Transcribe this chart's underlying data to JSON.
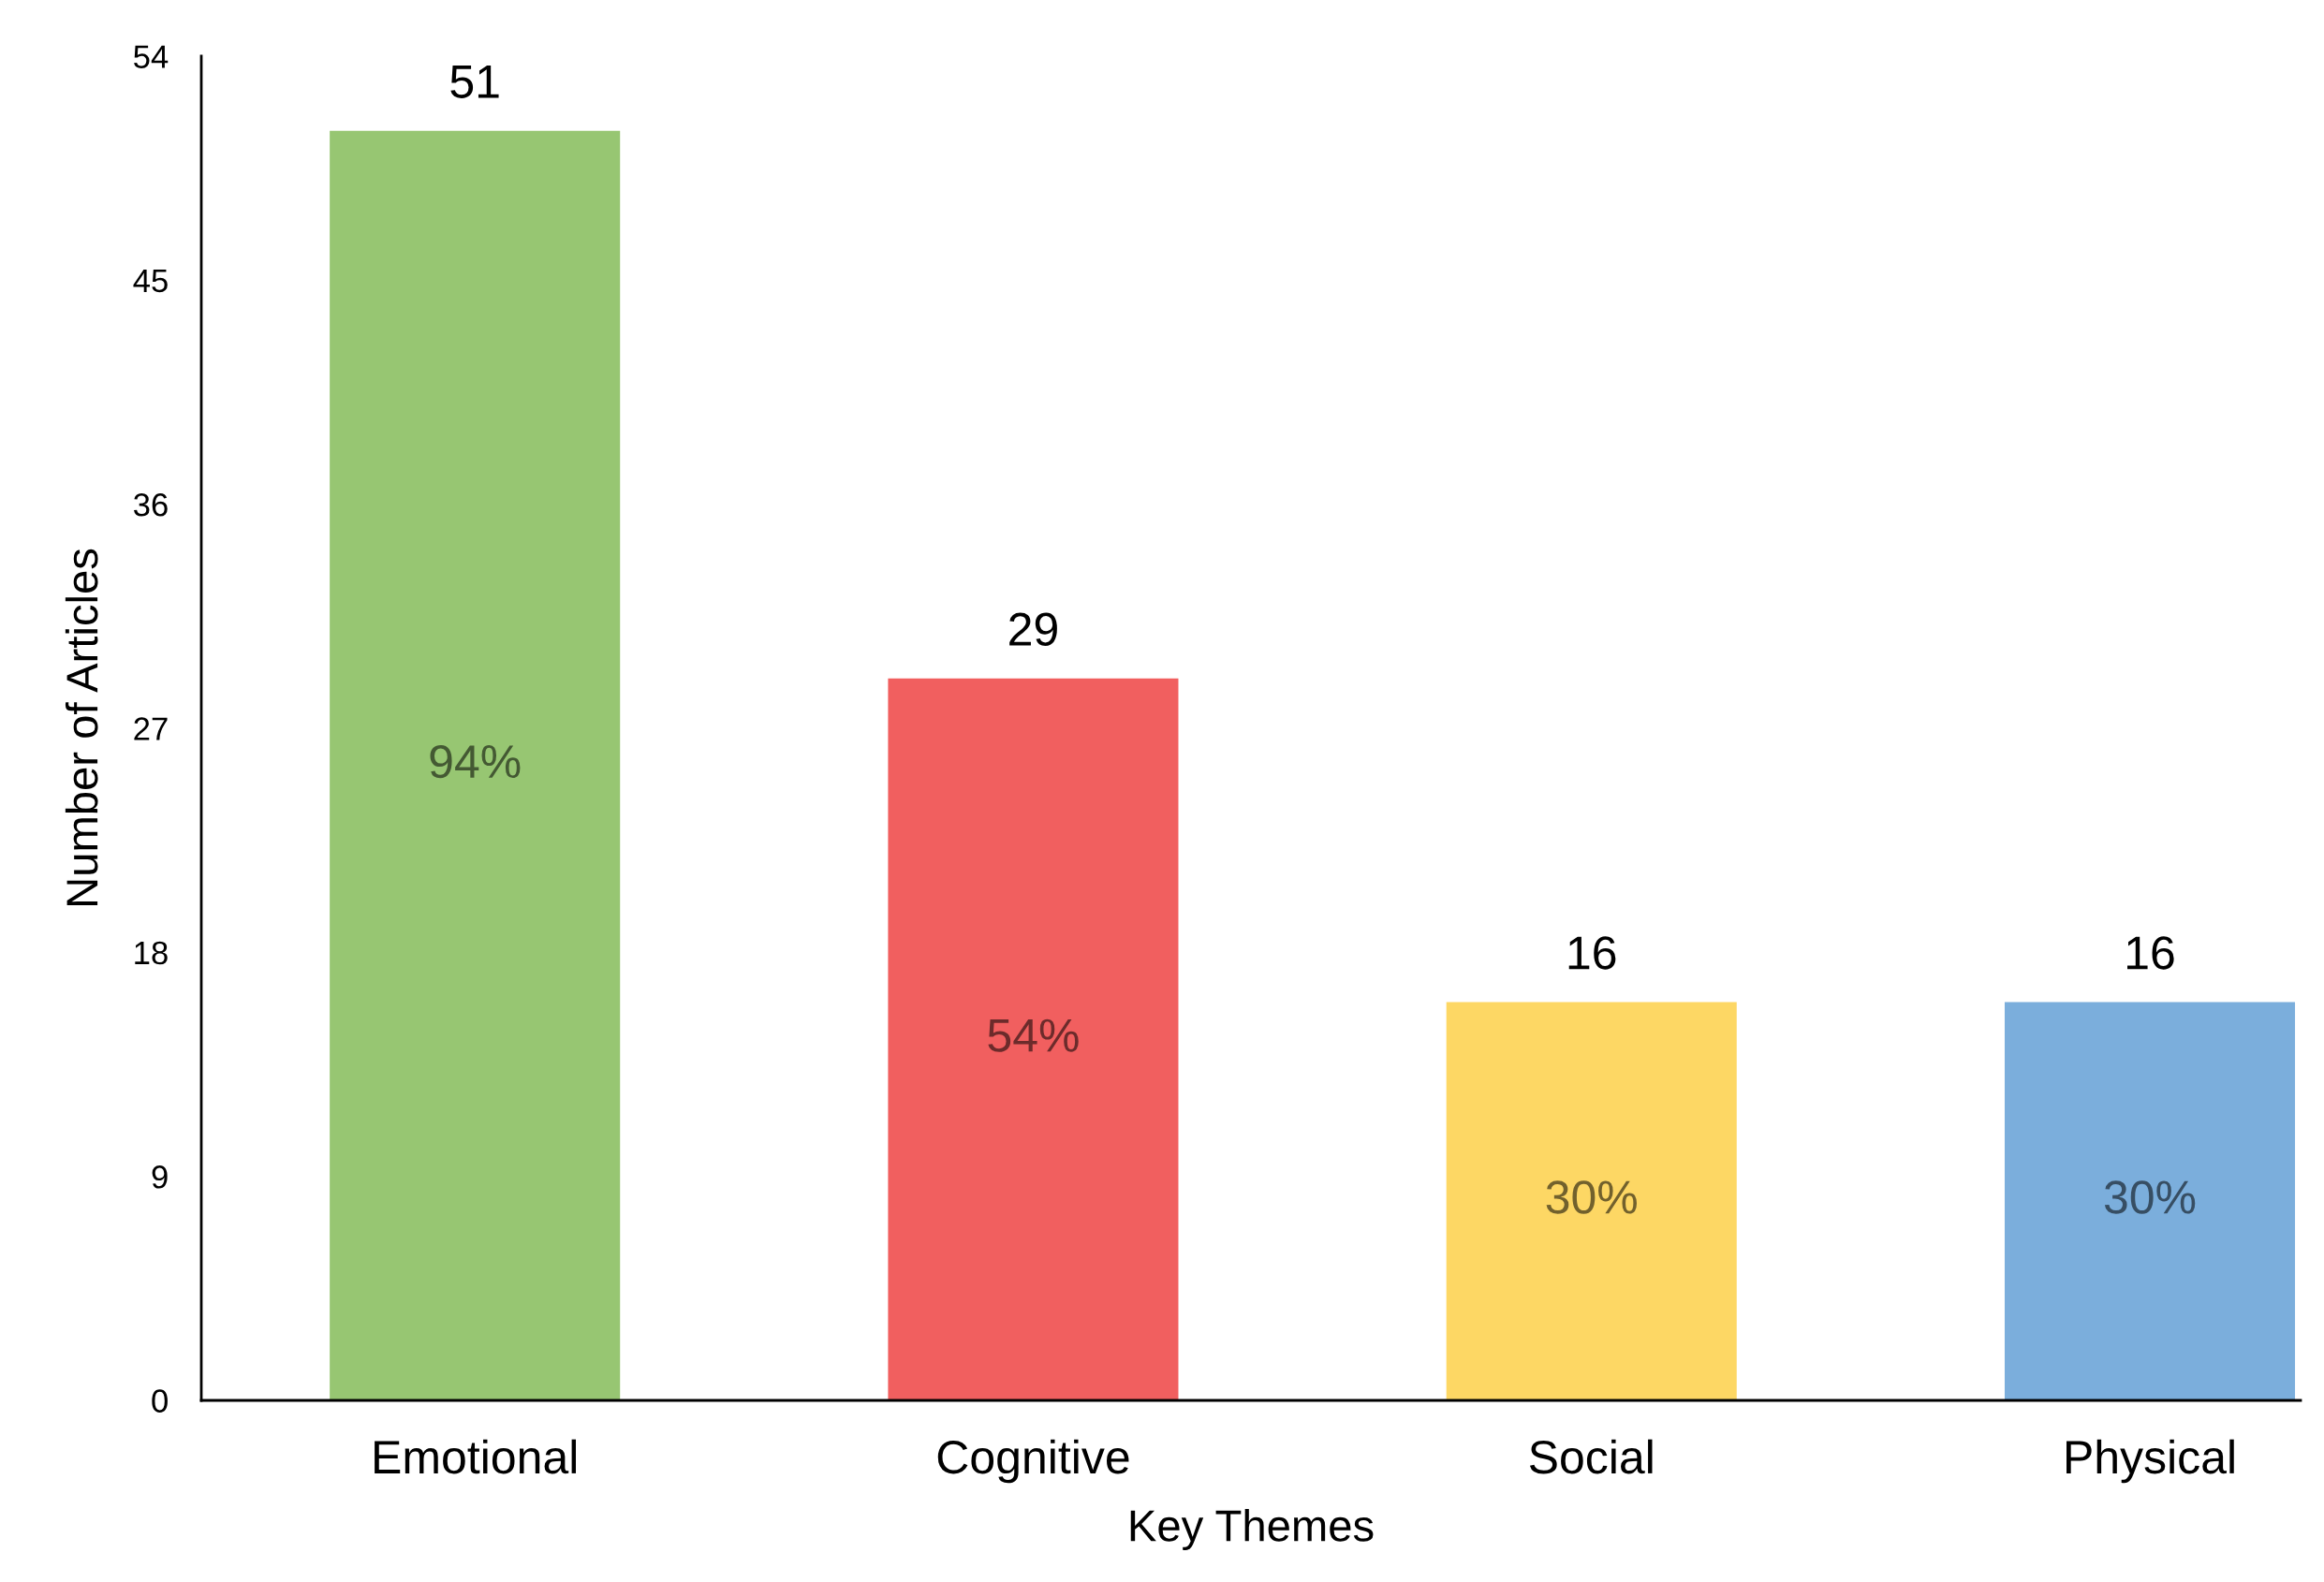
{
  "chart_data": {
    "type": "bar",
    "xlabel": "Key Themes",
    "ylabel": "Number of Articles",
    "categories": [
      "Emotional",
      "Cognitive",
      "Social",
      "Physical"
    ],
    "values": [
      51,
      29,
      16,
      16
    ],
    "colors": [
      "#97c672",
      "#f15f5f",
      "#fdd764",
      "#7baedc"
    ],
    "ylim": [
      0,
      54
    ],
    "yticks": [
      0,
      9,
      18,
      27,
      36,
      45,
      54
    ],
    "grid": false,
    "legend": false,
    "data_labels": true,
    "annotations": [
      "94%",
      "54%",
      "30%",
      "30%"
    ]
  }
}
